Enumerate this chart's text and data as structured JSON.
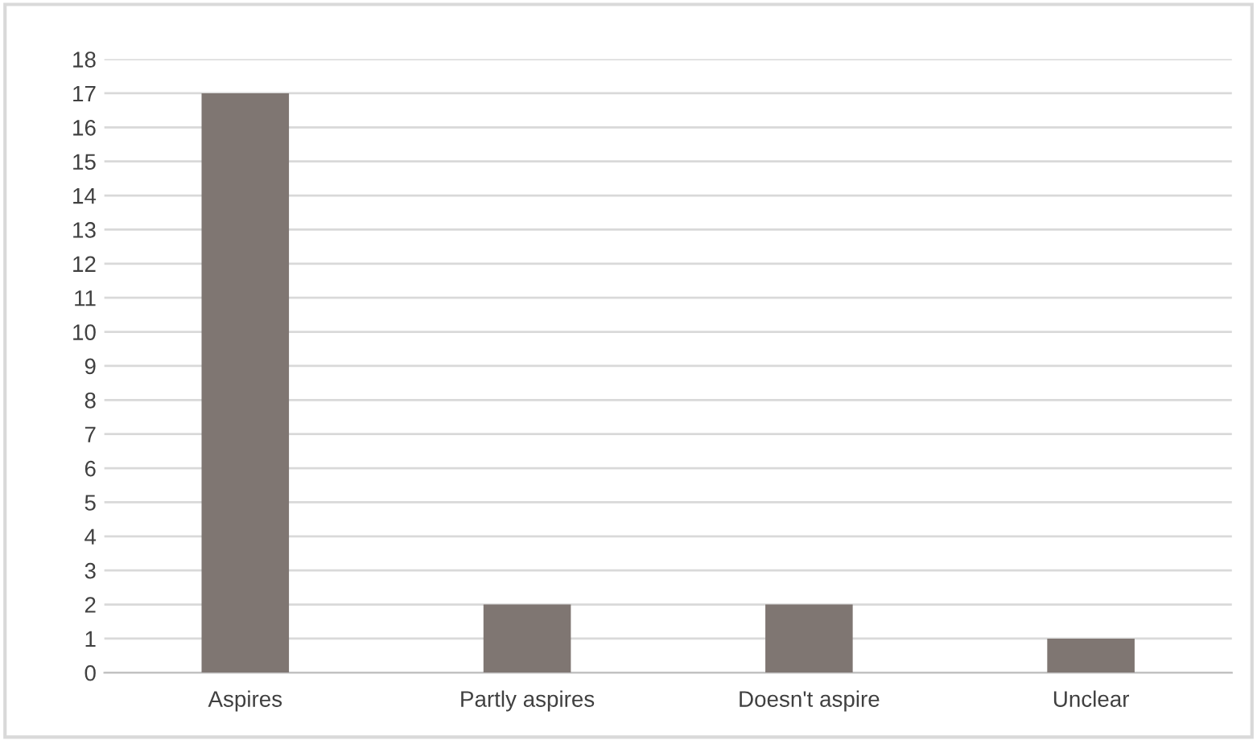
{
  "chart_data": {
    "type": "bar",
    "categories": [
      "Aspires",
      "Partly aspires",
      "Doesn't aspire",
      "Unclear"
    ],
    "values": [
      17,
      2,
      2,
      1
    ],
    "color": "#7f7672",
    "ylim": [
      0,
      18
    ],
    "yticks": [
      0,
      1,
      2,
      3,
      4,
      5,
      6,
      7,
      8,
      9,
      10,
      11,
      12,
      13,
      14,
      15,
      16,
      17,
      18
    ],
    "grid": "y"
  }
}
